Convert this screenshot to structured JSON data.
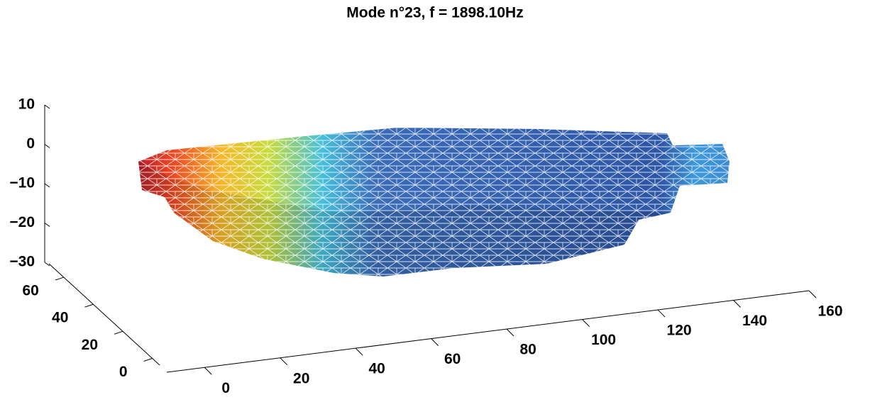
{
  "chart_data": {
    "type": "mesh3d",
    "title": "Mode n°23, f = 1898.10Hz",
    "xlim": [
      -10,
      160
    ],
    "xticks": [
      0,
      20,
      40,
      60,
      80,
      100,
      120,
      140,
      160
    ],
    "ylim": [
      -5,
      70
    ],
    "yticks": [
      0,
      20,
      40,
      60
    ],
    "zlim": [
      -30,
      10
    ],
    "zticks": [
      10,
      0,
      {
        "value": -10,
        "label": "−10"
      },
      {
        "value": -20,
        "label": "−20"
      },
      {
        "value": -30,
        "label": "−30"
      }
    ]
  }
}
